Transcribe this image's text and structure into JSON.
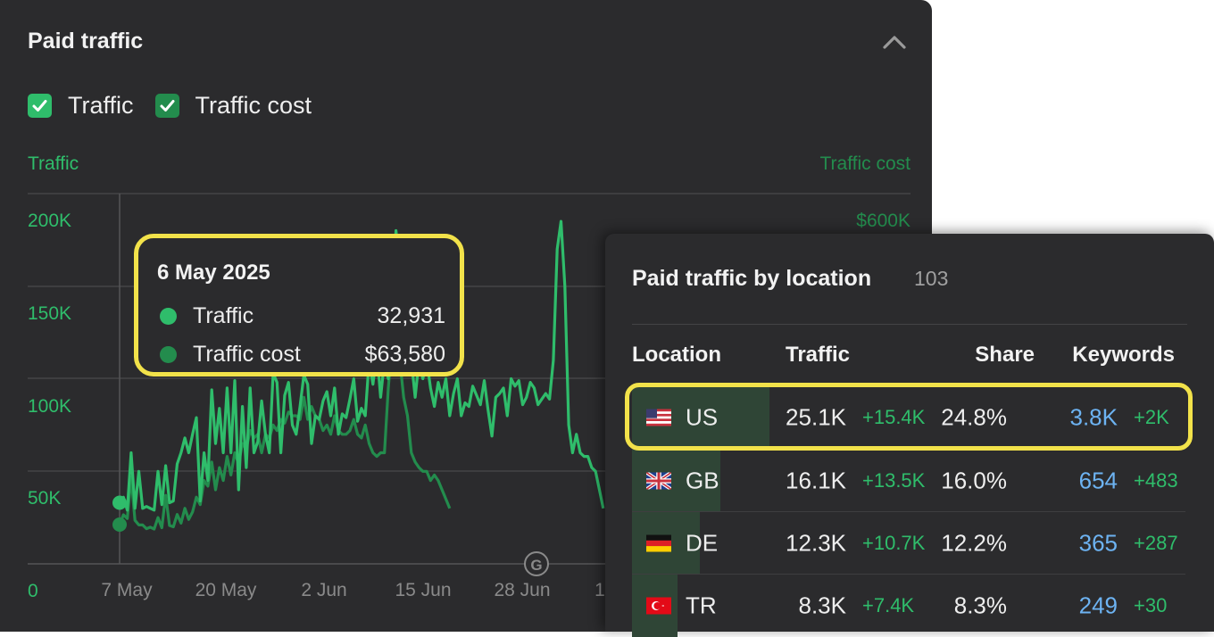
{
  "panel": {
    "title": "Paid traffic",
    "checks": [
      {
        "label": "Traffic",
        "color": "#2fbd6b",
        "checked": true
      },
      {
        "label": "Traffic cost",
        "color": "#238c4d",
        "checked": true
      }
    ]
  },
  "chart_data": {
    "type": "line",
    "left_axis_title": "Traffic",
    "right_axis_title": "Traffic cost",
    "left_ticks": [
      "200K",
      "150K",
      "100K",
      "50K",
      "0"
    ],
    "right_ticks": [
      "$600K"
    ],
    "x_ticks": [
      "7 May",
      "20 May",
      "2 Jun",
      "15 Jun",
      "28 Jun",
      "1"
    ],
    "ylim": [
      0,
      200000
    ],
    "grid": true,
    "series": [
      {
        "name": "Traffic",
        "color": "#2fbd6b",
        "values": [
          33000,
          36000,
          29000,
          60000,
          30000,
          50000,
          30000,
          31000,
          30000,
          29000,
          50000,
          32000,
          53000,
          33000,
          34000,
          54000,
          60000,
          68000,
          60000,
          70000,
          79000,
          34000,
          60000,
          45000,
          94000,
          65000,
          84000,
          60000,
          95000,
          60000,
          99000,
          40000,
          85000,
          52000,
          95000,
          60000,
          66000,
          88000,
          70000,
          60000,
          103000,
          98000,
          60000,
          91000,
          98000,
          75000,
          70000,
          85000,
          102000,
          97000,
          65000,
          80000,
          78000,
          88000,
          93000,
          80000,
          95000,
          70000,
          81000,
          79000,
          89000,
          100000,
          77000,
          84000,
          80000,
          110000,
          97000,
          115000,
          90000,
          110000,
          100000,
          140000,
          180000,
          160000,
          145000,
          125000,
          110000,
          90000,
          110000,
          100000,
          110000,
          95000,
          85000,
          98000,
          90000,
          100000,
          80000,
          92000,
          100000,
          80000,
          87000,
          85000,
          96000,
          91000,
          86000,
          99000,
          83000,
          69000,
          90000,
          92000,
          95000,
          80000,
          100000,
          96000,
          99000,
          86000,
          90000,
          98000,
          95000,
          86000,
          89000,
          92000,
          89000,
          110000,
          170000,
          185000,
          150000,
          75000,
          60000,
          70000,
          60000,
          58000,
          58000,
          52000,
          50000,
          40000,
          30000
        ]
      },
      {
        "name": "Traffic cost",
        "color": "#238c4d",
        "values": [
          21200,
          26500,
          24500,
          47000,
          23500,
          21000,
          21000,
          19000,
          19800,
          18800,
          25000,
          19500,
          37000,
          20700,
          20000,
          26700,
          22000,
          30000,
          24000,
          28000,
          36000,
          32000,
          45000,
          42000,
          55000,
          40000,
          52000,
          45000,
          58000,
          48000,
          60000,
          54000,
          65000,
          62000,
          72000,
          68000,
          70000,
          60000,
          70000,
          68000,
          75000,
          72000,
          78000,
          76000,
          82000,
          80000,
          80000,
          78000,
          90000,
          78000,
          85000,
          80000,
          78000,
          72000,
          75000,
          70000,
          80000,
          72000,
          70000,
          70000,
          72000,
          78000,
          70000,
          68000,
          75000,
          65000,
          60000,
          58000,
          60000,
          60000,
          95000,
          120000,
          175000,
          110000,
          90000,
          80000,
          60000,
          55000,
          52000,
          50000,
          50000,
          45000,
          48000,
          45000,
          40000,
          35000,
          30000
        ]
      }
    ]
  },
  "tooltip": {
    "date": "6 May 2025",
    "rows": [
      {
        "label": "Traffic",
        "value": "32,931",
        "color": "#2fbd6b"
      },
      {
        "label": "Traffic cost",
        "value": "$63,580",
        "color": "#238c4d"
      }
    ]
  },
  "location_panel": {
    "title": "Paid traffic by location",
    "count": "103",
    "columns": [
      "Location",
      "Traffic",
      "Share",
      "Keywords"
    ],
    "rows": [
      {
        "flag": "us-flag-icon",
        "code": "US",
        "traffic": "25.1K",
        "traffic_delta": "+15.4K",
        "share": "24.8%",
        "share_value": 0.248,
        "keywords": "3.8K",
        "keywords_delta": "+2K"
      },
      {
        "flag": "gb-flag-icon",
        "code": "GB",
        "traffic": "16.1K",
        "traffic_delta": "+13.5K",
        "share": "16.0%",
        "share_value": 0.16,
        "keywords": "654",
        "keywords_delta": "+483"
      },
      {
        "flag": "de-flag-icon",
        "code": "DE",
        "traffic": "12.3K",
        "traffic_delta": "+10.7K",
        "share": "12.2%",
        "share_value": 0.122,
        "keywords": "365",
        "keywords_delta": "+287"
      },
      {
        "flag": "tr-flag-icon",
        "code": "TR",
        "traffic": "8.3K",
        "traffic_delta": "+7.4K",
        "share": "8.3%",
        "share_value": 0.083,
        "keywords": "249",
        "keywords_delta": "+30"
      }
    ]
  },
  "colors": {
    "accent_green": "#2fbd6b",
    "dark_green": "#238c4d",
    "highlight": "#f2e24a",
    "keyword_blue": "#6db3f2"
  }
}
